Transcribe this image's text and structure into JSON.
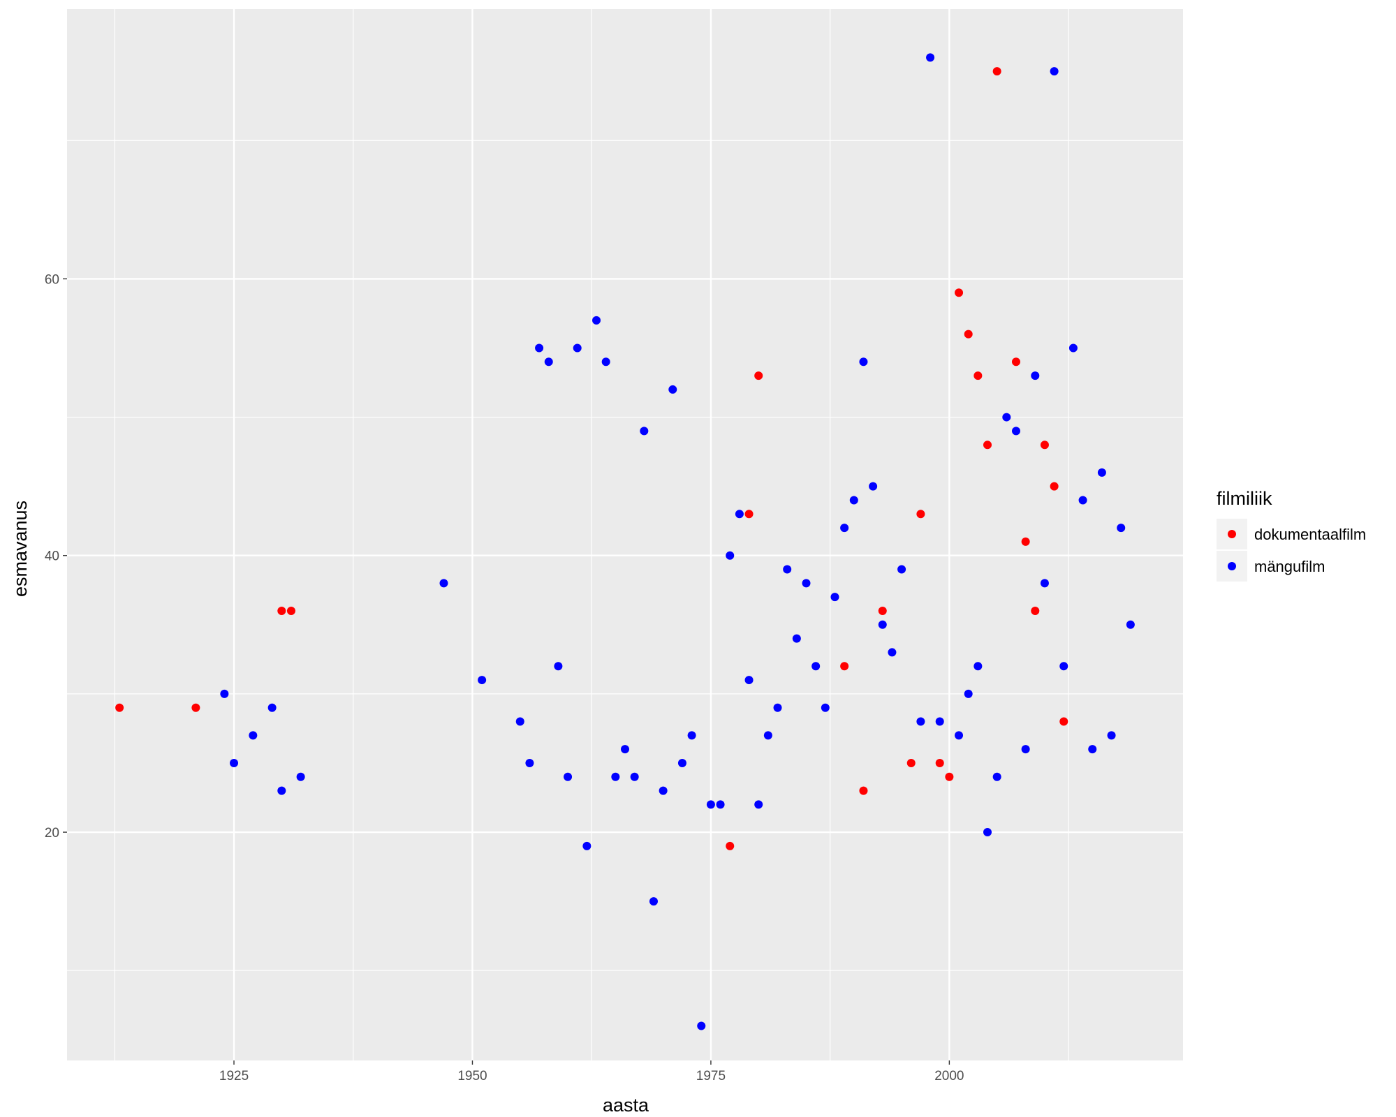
{
  "chart_data": {
    "type": "scatter",
    "xlabel": "aasta",
    "ylabel": "esmavanus",
    "xlim": [
      1907.5,
      2024.5
    ],
    "ylim": [
      3.5,
      79.5
    ],
    "x_ticks": [
      1925,
      1950,
      1975,
      2000
    ],
    "y_ticks": [
      20,
      40,
      60
    ],
    "x_tick_labels": [
      "1925",
      "1950",
      "1975",
      "2000"
    ],
    "y_tick_labels": [
      "20",
      "40",
      "60"
    ],
    "grid": true,
    "background": "#ebebeb",
    "legend": {
      "title": "filmiliik",
      "placement": "right",
      "entries": [
        "dokumentaalfilm",
        "mängufilm"
      ]
    },
    "colors": {
      "dokumentaalfilm": "#ff0000",
      "mängufilm": "#0000ff"
    },
    "series": [
      {
        "name": "dokumentaalfilm",
        "points": [
          [
            1913,
            29
          ],
          [
            1921,
            29
          ],
          [
            1930,
            36
          ],
          [
            1931,
            36
          ],
          [
            1977,
            19
          ],
          [
            1979,
            43
          ],
          [
            1980,
            53
          ],
          [
            1989,
            32
          ],
          [
            1991,
            23
          ],
          [
            1993,
            36
          ],
          [
            1996,
            25
          ],
          [
            1997,
            43
          ],
          [
            1999,
            25
          ],
          [
            2000,
            24
          ],
          [
            2001,
            59
          ],
          [
            2002,
            56
          ],
          [
            2003,
            53
          ],
          [
            2004,
            48
          ],
          [
            2005,
            75
          ],
          [
            2007,
            54
          ],
          [
            2008,
            41
          ],
          [
            2009,
            36
          ],
          [
            2010,
            48
          ],
          [
            2011,
            45
          ],
          [
            2012,
            28
          ]
        ]
      },
      {
        "name": "mängufilm",
        "points": [
          [
            1924,
            30
          ],
          [
            1925,
            25
          ],
          [
            1927,
            27
          ],
          [
            1929,
            29
          ],
          [
            1930,
            23
          ],
          [
            1932,
            24
          ],
          [
            1947,
            38
          ],
          [
            1951,
            31
          ],
          [
            1955,
            28
          ],
          [
            1956,
            25
          ],
          [
            1957,
            55
          ],
          [
            1958,
            54
          ],
          [
            1959,
            32
          ],
          [
            1960,
            24
          ],
          [
            1961,
            55
          ],
          [
            1962,
            19
          ],
          [
            1963,
            57
          ],
          [
            1964,
            54
          ],
          [
            1965,
            24
          ],
          [
            1966,
            26
          ],
          [
            1967,
            24
          ],
          [
            1968,
            49
          ],
          [
            1969,
            15
          ],
          [
            1970,
            23
          ],
          [
            1971,
            52
          ],
          [
            1972,
            25
          ],
          [
            1973,
            27
          ],
          [
            1974,
            6
          ],
          [
            1975,
            22
          ],
          [
            1976,
            22
          ],
          [
            1977,
            40
          ],
          [
            1978,
            43
          ],
          [
            1979,
            31
          ],
          [
            1980,
            22
          ],
          [
            1981,
            27
          ],
          [
            1982,
            29
          ],
          [
            1983,
            39
          ],
          [
            1984,
            34
          ],
          [
            1985,
            38
          ],
          [
            1986,
            32
          ],
          [
            1987,
            29
          ],
          [
            1988,
            37
          ],
          [
            1989,
            42
          ],
          [
            1990,
            44
          ],
          [
            1991,
            54
          ],
          [
            1992,
            45
          ],
          [
            1993,
            35
          ],
          [
            1994,
            33
          ],
          [
            1995,
            39
          ],
          [
            1997,
            28
          ],
          [
            1998,
            76
          ],
          [
            1999,
            28
          ],
          [
            2001,
            27
          ],
          [
            2002,
            30
          ],
          [
            2003,
            32
          ],
          [
            2004,
            20
          ],
          [
            2005,
            24
          ],
          [
            2006,
            50
          ],
          [
            2007,
            49
          ],
          [
            2008,
            26
          ],
          [
            2009,
            53
          ],
          [
            2010,
            38
          ],
          [
            2011,
            75
          ],
          [
            2012,
            32
          ],
          [
            2013,
            55
          ],
          [
            2014,
            44
          ],
          [
            2015,
            26
          ],
          [
            2016,
            46
          ],
          [
            2017,
            27
          ],
          [
            2018,
            42
          ],
          [
            2019,
            35
          ]
        ]
      }
    ]
  }
}
